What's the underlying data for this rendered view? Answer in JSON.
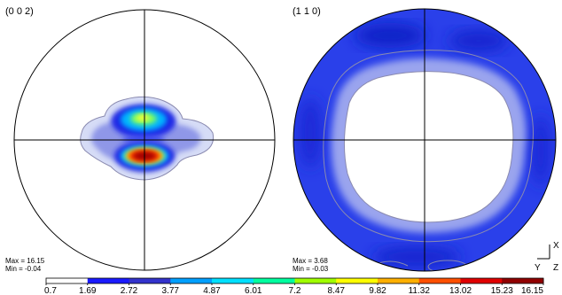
{
  "chart_data": {
    "type": "heatmap",
    "plots": [
      {
        "title": "(0 0 2)",
        "max_label": "Max = 16.15",
        "min_label": "Min = -0.04",
        "max": 16.15,
        "min": -0.04
      },
      {
        "title": "(1 1 0)",
        "max_label": "Max = 3.68",
        "min_label": "Min = -0.03",
        "max": 3.68,
        "min": -0.03
      }
    ],
    "colorbar": {
      "ticks": [
        "0.7",
        "1.69",
        "2.72",
        "3.77",
        "4.87",
        "6.01",
        "7.2",
        "8.47",
        "9.82",
        "11.32",
        "13.02",
        "15.23",
        "16.15"
      ],
      "colors": [
        "#ffffff",
        "#1a1aff",
        "#3333cc",
        "#00a0ff",
        "#00e0ff",
        "#00ffa0",
        "#a0ff00",
        "#ffff00",
        "#ffb000",
        "#ff5000",
        "#e00000",
        "#900000"
      ]
    },
    "axes_legend": {
      "x": "X",
      "y": "Y",
      "z": "Z"
    }
  }
}
